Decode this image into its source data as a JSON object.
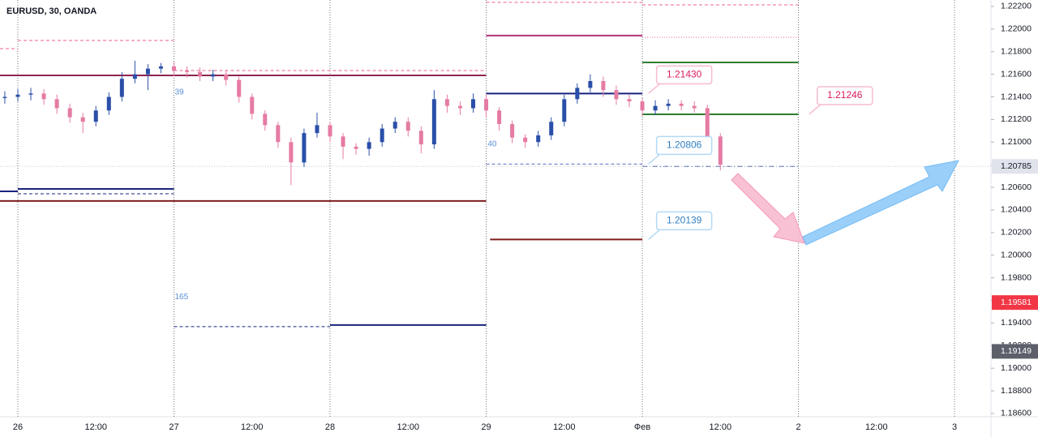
{
  "chart_data": {
    "type": "candlestick",
    "title": "EURUSD, 30, OANDA",
    "up_color": "#2a4fa8",
    "down_color": "#e57ba3",
    "xlim": [
      -2.74,
      149.6
    ],
    "ylim": [
      1.18571,
      1.22257
    ],
    "xticks": [
      {
        "value": 0,
        "label": "26"
      },
      {
        "value": 12,
        "label": "12:00"
      },
      {
        "value": 24,
        "label": "27"
      },
      {
        "value": 36,
        "label": "12:00"
      },
      {
        "value": 48,
        "label": "28"
      },
      {
        "value": 60,
        "label": "12:00"
      },
      {
        "value": 72,
        "label": "29"
      },
      {
        "value": 84,
        "label": "12:00"
      },
      {
        "value": 96,
        "label": "Фев"
      },
      {
        "value": 108,
        "label": "12:00"
      },
      {
        "value": 120,
        "label": "2"
      },
      {
        "value": 132,
        "label": "12:00"
      },
      {
        "value": 144,
        "label": "3"
      }
    ],
    "yticks": [
      {
        "value": 1.222,
        "label": "1.22200"
      },
      {
        "value": 1.22,
        "label": "1.22000"
      },
      {
        "value": 1.218,
        "label": "1.21800"
      },
      {
        "value": 1.216,
        "label": "1.21600"
      },
      {
        "value": 1.214,
        "label": "1.21400"
      },
      {
        "value": 1.212,
        "label": "1.21200"
      },
      {
        "value": 1.21,
        "label": "1.21000"
      },
      {
        "value": 1.208,
        "label": "1.20800"
      },
      {
        "value": 1.206,
        "label": "1.20600"
      },
      {
        "value": 1.204,
        "label": "1.20400"
      },
      {
        "value": 1.202,
        "label": "1.20200"
      },
      {
        "value": 1.2,
        "label": "1.20000"
      },
      {
        "value": 1.198,
        "label": "1.19800"
      },
      {
        "value": 1.196,
        "label": "1.19600"
      },
      {
        "value": 1.194,
        "label": "1.19400"
      },
      {
        "value": 1.192,
        "label": "1.19200"
      },
      {
        "value": 1.19,
        "label": "1.19000"
      },
      {
        "value": 1.188,
        "label": "1.18800"
      },
      {
        "value": 1.186,
        "label": "1.18600"
      }
    ],
    "session_breaks": [
      0,
      24,
      48,
      72,
      96,
      120,
      144
    ],
    "x": [
      -2,
      0,
      2,
      4,
      6,
      8,
      10,
      12,
      14,
      16,
      18,
      20,
      22,
      24,
      26,
      28,
      30,
      32,
      34,
      36,
      38,
      40,
      42,
      44,
      46,
      48,
      50,
      52,
      54,
      56,
      58,
      60,
      62,
      64,
      66,
      68,
      70,
      72,
      74,
      76,
      78,
      80,
      82,
      84,
      86,
      88,
      90,
      92,
      94,
      96,
      98,
      100,
      102,
      104,
      106,
      108
    ],
    "open": [
      1.2139,
      1.214,
      1.2142,
      1.2143,
      1.2138,
      1.213,
      1.2122,
      1.2118,
      1.2128,
      1.214,
      1.2156,
      1.216,
      1.2165,
      1.2167,
      1.2163,
      1.2162,
      1.2158,
      1.216,
      1.2155,
      1.214,
      1.2125,
      1.2115,
      1.21,
      1.2082,
      1.2108,
      1.2115,
      1.2105,
      1.2096,
      1.2094,
      1.21,
      1.2112,
      1.2118,
      1.211,
      1.2098,
      1.2138,
      1.2132,
      1.213,
      1.2138,
      1.2128,
      1.2116,
      1.2104,
      1.21,
      1.2106,
      1.2118,
      1.2138,
      1.2148,
      1.2154,
      1.2146,
      1.2138,
      1.2136,
      1.2128,
      1.2132,
      1.2134,
      1.2132,
      1.213,
      1.2105
    ],
    "high": [
      1.2145,
      1.2147,
      1.2148,
      1.2147,
      1.2142,
      1.2134,
      1.2126,
      1.2132,
      1.2144,
      1.2162,
      1.2172,
      1.2169,
      1.217,
      1.2171,
      1.2167,
      1.2166,
      1.2164,
      1.2163,
      1.2158,
      1.2143,
      1.2128,
      1.2118,
      1.2104,
      1.2112,
      1.2126,
      1.2118,
      1.2108,
      1.2099,
      1.2104,
      1.2116,
      1.2122,
      1.2122,
      1.2114,
      1.2146,
      1.2142,
      1.2136,
      1.2143,
      1.2142,
      1.2131,
      1.2119,
      1.2107,
      1.211,
      1.2122,
      1.2142,
      1.2152,
      1.216,
      1.2158,
      1.215,
      1.2142,
      1.2139,
      1.2137,
      1.2138,
      1.2137,
      1.2136,
      1.2133,
      1.2108
    ],
    "low": [
      1.2134,
      1.2136,
      1.2137,
      1.2133,
      1.2125,
      1.2117,
      1.2108,
      1.2114,
      1.2124,
      1.2136,
      1.2152,
      1.2146,
      1.2161,
      1.2158,
      1.2157,
      1.2154,
      1.2154,
      1.215,
      1.2135,
      1.212,
      1.211,
      1.2095,
      1.2062,
      1.2078,
      1.2104,
      1.21,
      1.2085,
      1.2089,
      1.2088,
      1.2096,
      1.2108,
      1.2105,
      1.209,
      1.2094,
      1.2126,
      1.2124,
      1.2126,
      1.2122,
      1.211,
      1.2099,
      1.2095,
      1.2096,
      1.2102,
      1.2114,
      1.2134,
      1.2144,
      1.214,
      1.2133,
      1.2131,
      1.2123,
      1.2124,
      1.2128,
      1.2128,
      1.2126,
      1.21,
      1.2075
    ],
    "close": [
      1.214,
      1.2142,
      1.2143,
      1.2138,
      1.213,
      1.2122,
      1.2118,
      1.2128,
      1.214,
      1.2156,
      1.216,
      1.2165,
      1.2167,
      1.2163,
      1.2162,
      1.2158,
      1.216,
      1.2155,
      1.214,
      1.2125,
      1.2115,
      1.21,
      1.2082,
      1.2108,
      1.2115,
      1.2105,
      1.2096,
      1.2094,
      1.21,
      1.2112,
      1.2118,
      1.211,
      1.2098,
      1.2138,
      1.2132,
      1.213,
      1.2138,
      1.2128,
      1.2116,
      1.2104,
      1.21,
      1.2106,
      1.2118,
      1.2138,
      1.2148,
      1.2154,
      1.2146,
      1.2138,
      1.2136,
      1.2128,
      1.2132,
      1.2134,
      1.2132,
      1.213,
      1.2105,
      1.208
    ],
    "levels": [
      {
        "x": [
          -2.74,
          0
        ],
        "y": 1.21827,
        "color": "#f06292",
        "dash": "dashed"
      },
      {
        "x": [
          0,
          24
        ],
        "y": 1.21899,
        "color": "#f06292",
        "dash": "dashed"
      },
      {
        "x": [
          -2.74,
          72
        ],
        "y": 1.2159,
        "color": "#8e2450",
        "dash": "solid"
      },
      {
        "x": [
          24,
          72
        ],
        "y": 1.21633,
        "color": "#f06292",
        "dash": "dashed"
      },
      {
        "x": [
          -2.74,
          0
        ],
        "y": 1.20565,
        "color": "#1a237e",
        "dash": "solid"
      },
      {
        "x": [
          0,
          24
        ],
        "y": 1.20586,
        "color": "#1a237e",
        "dash": "solid"
      },
      {
        "x": [
          0,
          24
        ],
        "y": 1.20543,
        "color": "#1a237e",
        "dash": "dashed"
      },
      {
        "x": [
          -2.74,
          72
        ],
        "y": 1.20479,
        "color": "#7f1d1d",
        "dash": "solid"
      },
      {
        "x": [
          24,
          48
        ],
        "y": 1.19368,
        "color": "#1a237e",
        "dash": "dashed"
      },
      {
        "x": [
          48,
          72
        ],
        "y": 1.19382,
        "color": "#1a237e",
        "dash": "solid"
      },
      {
        "x": [
          72,
          96
        ],
        "y": 1.22236,
        "color": "#f06292",
        "dash": "dashed"
      },
      {
        "x": [
          72,
          96
        ],
        "y": 1.21942,
        "color": "#b5307a",
        "dash": "solid"
      },
      {
        "x": [
          72,
          96
        ],
        "y": 1.2143,
        "color": "#1a237e",
        "dash": "solid"
      },
      {
        "x": [
          72,
          96
        ],
        "y": 1.20806,
        "color": "#5c6bc0",
        "dash": "dashed"
      },
      {
        "x": [
          72.6,
          96
        ],
        "y": 1.20139,
        "color": "#7f1d1d",
        "dash": "solid"
      },
      {
        "x": [
          96,
          120
        ],
        "y": 1.22214,
        "color": "#f06292",
        "dash": "dashed"
      },
      {
        "x": [
          96,
          120
        ],
        "y": 1.21927,
        "color": "#f06292",
        "dash": "dotted"
      },
      {
        "x": [
          96,
          120
        ],
        "y": 1.21705,
        "color": "#2e7d32",
        "dash": "solid"
      },
      {
        "x": [
          96,
          120
        ],
        "y": 1.21246,
        "color": "#2e7d32",
        "dash": "solid"
      },
      {
        "x": [
          96,
          120
        ],
        "y": 1.20785,
        "color": "#3f51b5",
        "dash": "dashdot"
      },
      {
        "x": [
          -2.74,
          149.6
        ],
        "y": 1.20785,
        "color": "#c8cbd3",
        "dash": "dotted"
      }
    ],
    "callouts": [
      {
        "value": 1.2143,
        "label": "1.21430",
        "x": 97.2,
        "color": "#d81b60",
        "border": "#f8bbd0"
      },
      {
        "value": 1.21246,
        "label": "1.21246",
        "x": 121.9,
        "color": "#d81b60",
        "border": "#f8bbd0"
      },
      {
        "value": 1.20806,
        "label": "1.20806",
        "x": 97.2,
        "color": "#2f7fc1",
        "border": "#b3d9f5"
      },
      {
        "value": 1.20139,
        "label": "1.20139",
        "x": 97.2,
        "color": "#2f7fc1",
        "border": "#b3d9f5"
      }
    ],
    "annotations": [
      {
        "text": "39",
        "x": 24,
        "y": 1.2144,
        "color": "#5c8fd6"
      },
      {
        "text": "40",
        "x": 72.1,
        "y": 1.2098,
        "color": "#5c8fd6"
      },
      {
        "text": "165",
        "x": 24,
        "y": 1.1963,
        "color": "#5c8fd6"
      }
    ],
    "price_markers": [
      {
        "value": 1.20785,
        "label": "1.20785",
        "color": "#e0e3eb",
        "text_color": "#131722"
      },
      {
        "value": 1.19581,
        "label": "1.19581",
        "color": "#f23645",
        "text_color": "#ffffff"
      },
      {
        "value": 1.19149,
        "label": "1.19149",
        "color": "#5d606b",
        "text_color": "#ffffff"
      }
    ]
  }
}
